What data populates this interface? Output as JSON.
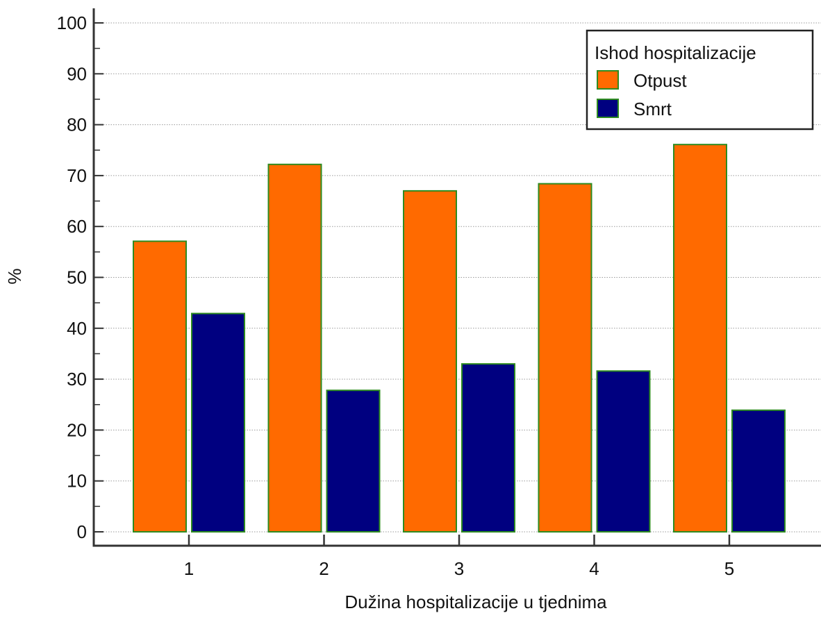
{
  "chart_data": {
    "type": "bar",
    "title": "",
    "xlabel": "Dužina hospitalizacije u tjednima",
    "ylabel": "%",
    "categories": [
      "1",
      "2",
      "3",
      "4",
      "5"
    ],
    "series": [
      {
        "name": "Otpust",
        "values": [
          57.1,
          72.2,
          67.0,
          68.4,
          76.1
        ],
        "color": "#ff6a00"
      },
      {
        "name": "Smrt",
        "values": [
          42.9,
          27.8,
          33.0,
          31.6,
          23.9
        ],
        "color": "#000080"
      }
    ],
    "ylim": [
      0,
      100
    ],
    "yticks": [
      0,
      10,
      20,
      30,
      40,
      50,
      60,
      70,
      80,
      90,
      100
    ],
    "grid": true,
    "legend": {
      "title": "Ishod hospitalizacije",
      "position": "top-right"
    },
    "bar_edge_color": "#2e8b20"
  }
}
